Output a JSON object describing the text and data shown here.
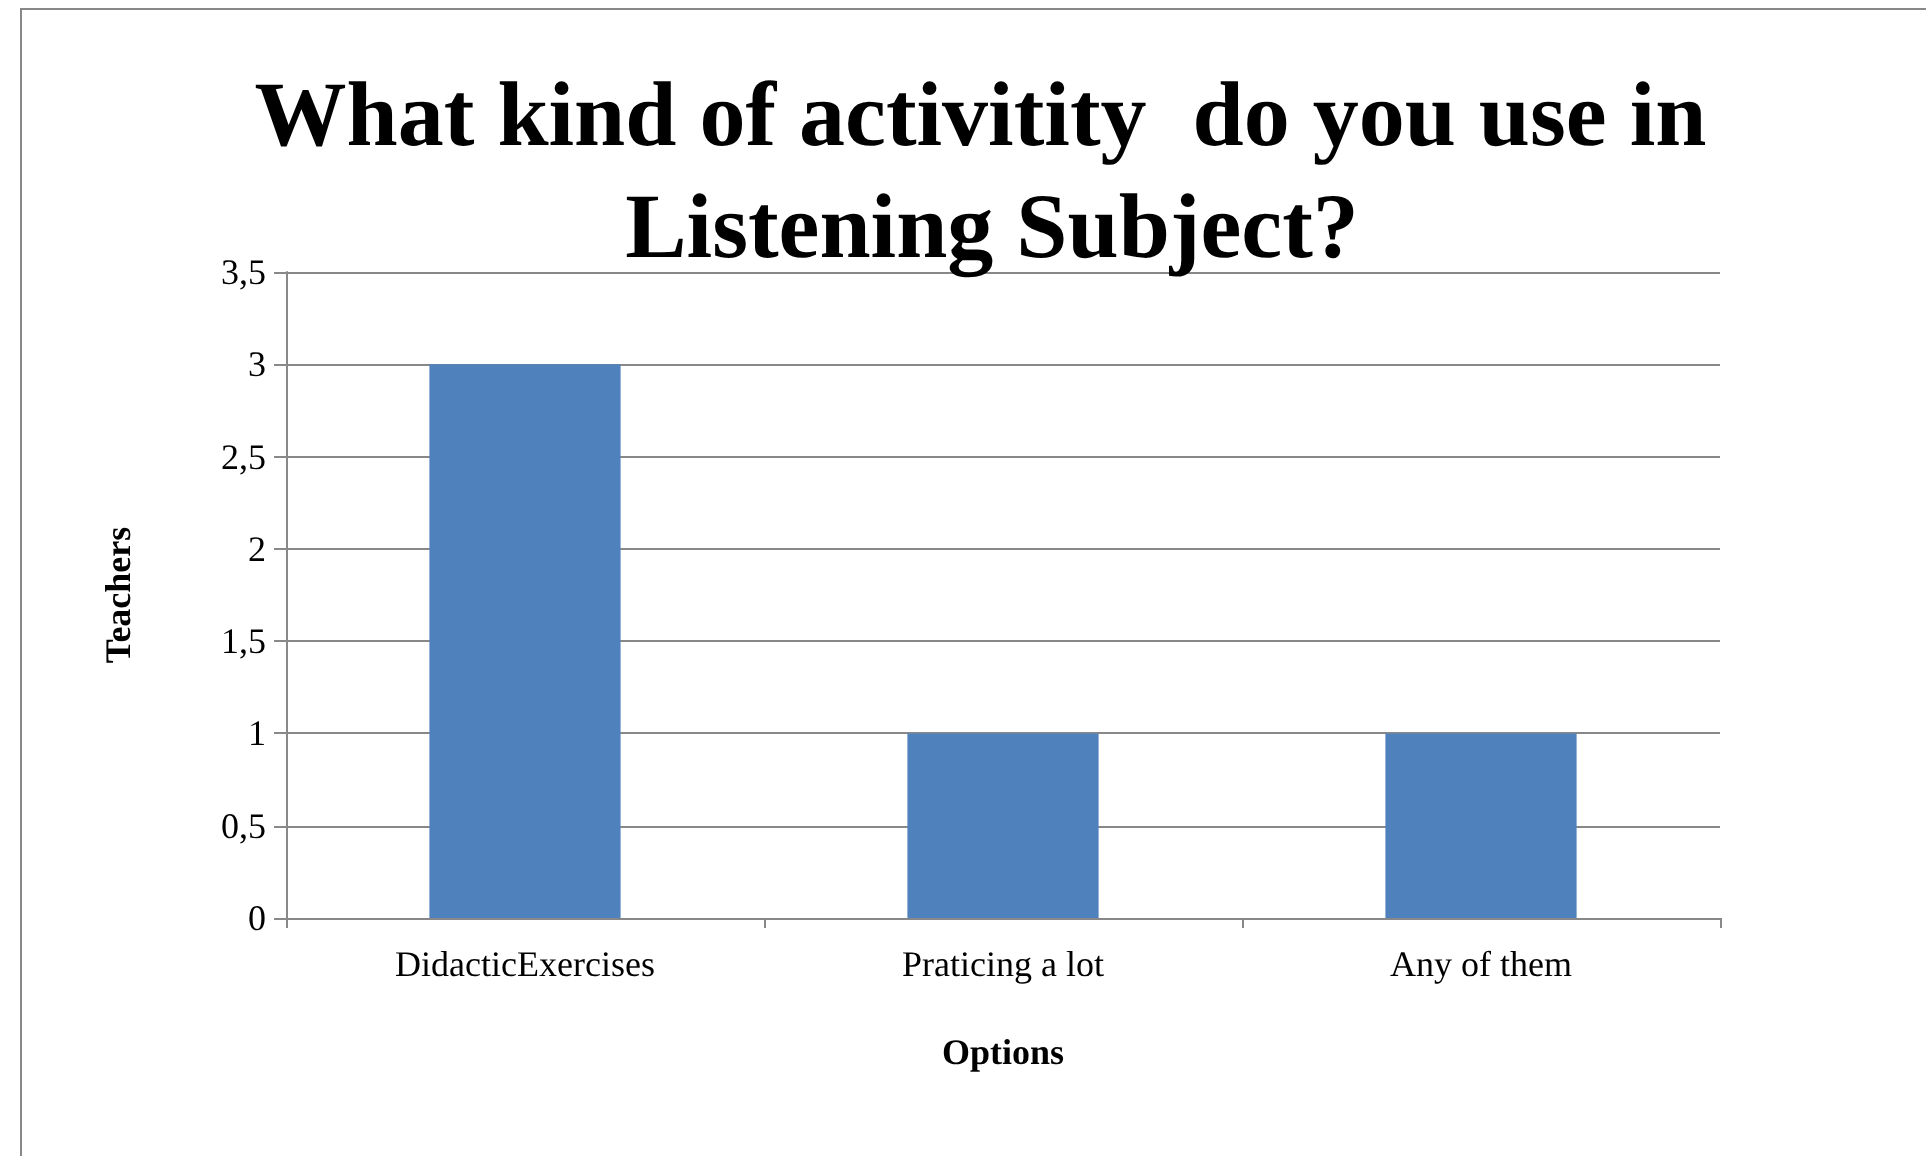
{
  "chart_data": {
    "type": "bar",
    "title": "What kind of activitity  do you use in Listening Subject?",
    "xlabel": "Options",
    "ylabel": "Teachers",
    "categories": [
      "DidacticExercises",
      "Praticing a lot",
      "Any of them"
    ],
    "values": [
      3,
      1,
      1
    ],
    "color": "#4f81bd",
    "ylim": [
      0,
      3.5
    ],
    "yticks": [
      0,
      {
        "value": 0.5,
        "label": "0,5"
      },
      1,
      {
        "value": 1.5,
        "label": "1,5"
      },
      2,
      {
        "value": 2.5,
        "label": "2,5"
      },
      3,
      {
        "value": 3.5,
        "label": "3,5"
      }
    ],
    "grid": "y"
  }
}
